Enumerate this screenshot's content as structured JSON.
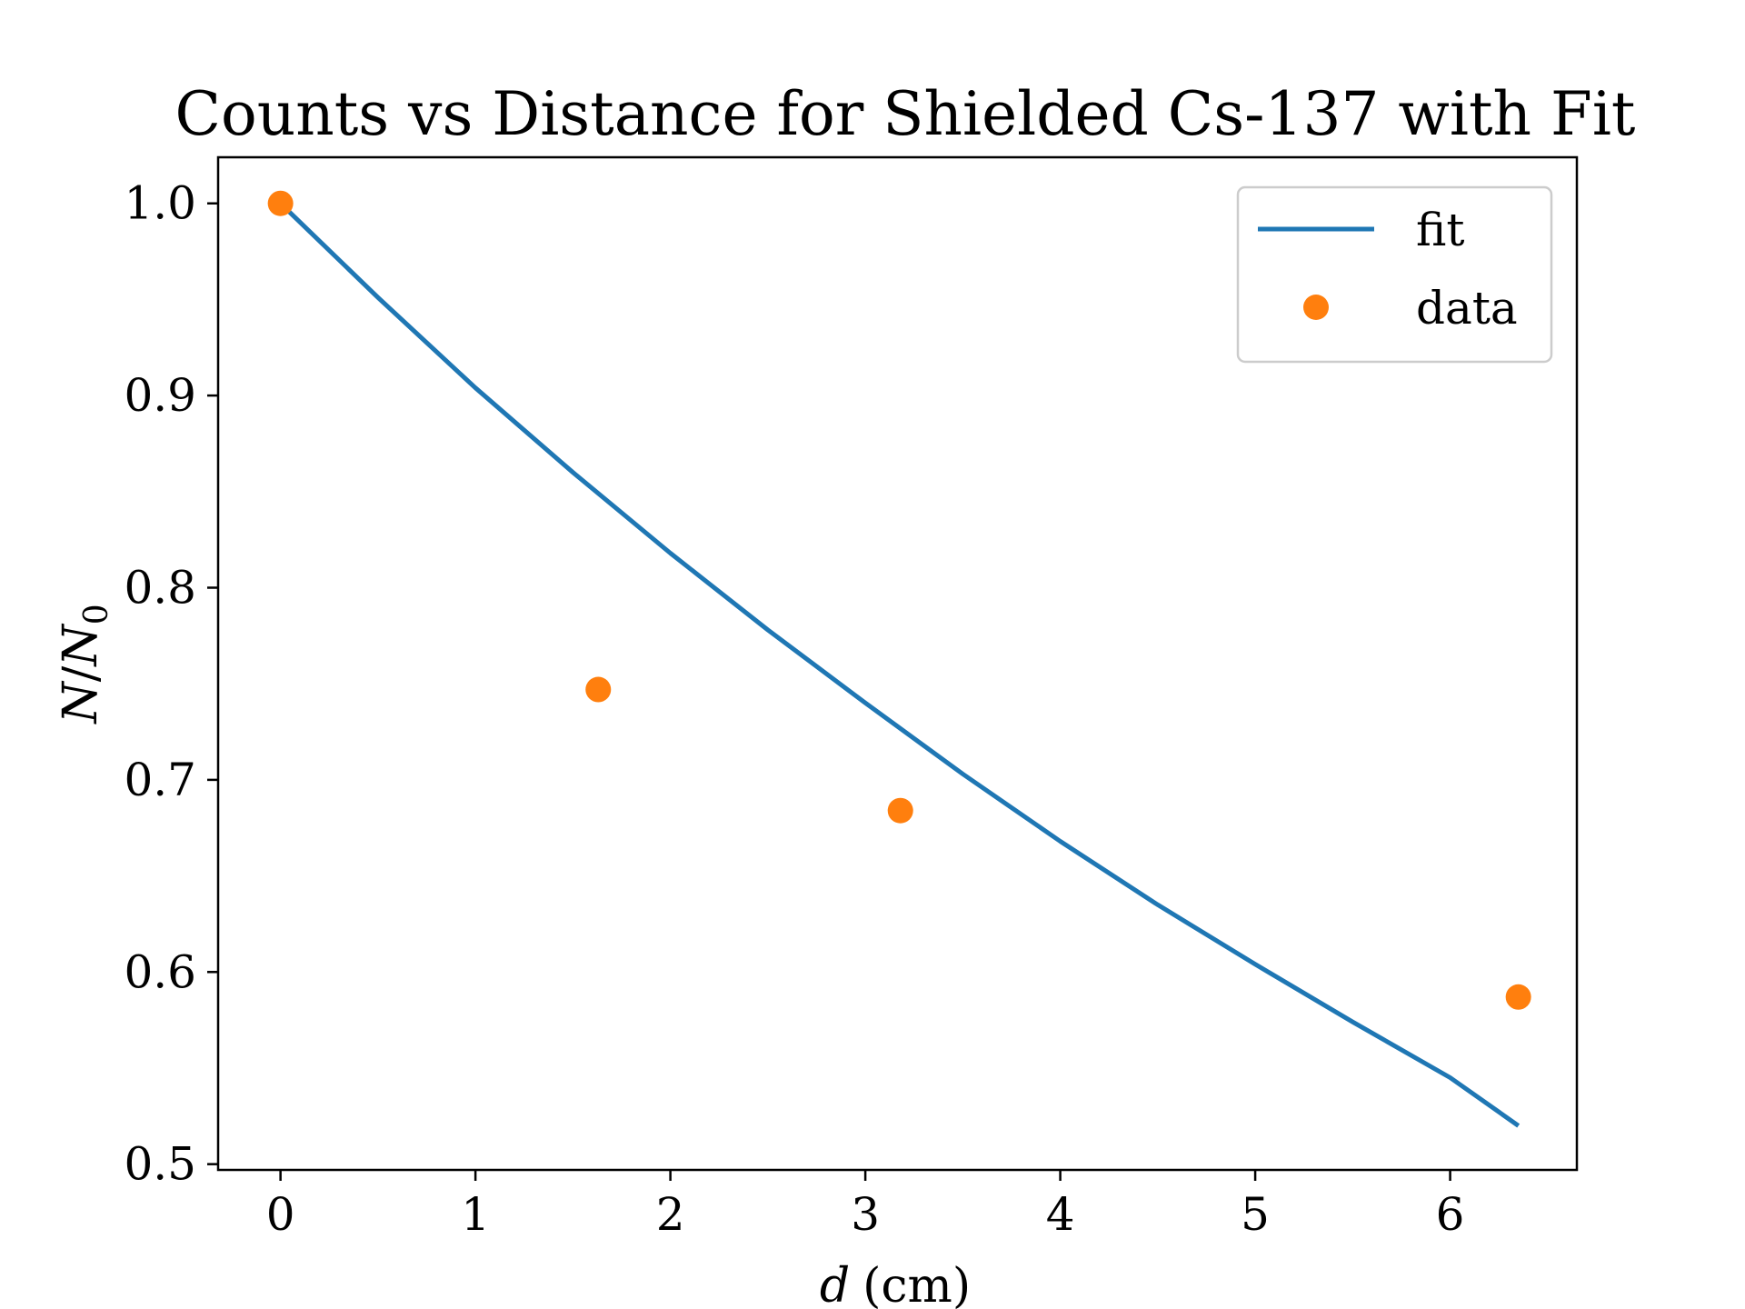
{
  "chart_data": {
    "type": "line",
    "title": "Counts vs Distance for Shielded Cs-137 with Fit",
    "xlabel": {
      "var": "d",
      "unit": "(cm)"
    },
    "ylabel": {
      "num": "N",
      "sep": "/",
      "den": "N",
      "sub": "0"
    },
    "xlim": [
      -0.32,
      6.65
    ],
    "ylim": [
      0.497,
      1.024
    ],
    "xticks": [
      0,
      1,
      2,
      3,
      4,
      5,
      6
    ],
    "xtick_labels": [
      "0",
      "1",
      "2",
      "3",
      "4",
      "5",
      "6"
    ],
    "yticks": [
      0.5,
      0.6,
      0.7,
      0.8,
      0.9,
      1.0
    ],
    "ytick_labels": [
      "0.5",
      "0.6",
      "0.7",
      "0.8",
      "0.9",
      "1.0"
    ],
    "grid": false,
    "legend_position": "top-right",
    "series": [
      {
        "name": "fit",
        "kind": "line",
        "color": "#1f77b4",
        "x": [
          0.0,
          0.5,
          1.0,
          1.5,
          2.0,
          2.5,
          3.0,
          3.5,
          4.0,
          4.5,
          5.0,
          5.5,
          6.0,
          6.35
        ],
        "y": [
          1.0,
          0.951,
          0.904,
          0.86,
          0.818,
          0.778,
          0.74,
          0.703,
          0.668,
          0.635,
          0.604,
          0.574,
          0.545,
          0.52
        ]
      },
      {
        "name": "data",
        "kind": "scatter",
        "color": "#ff7f0e",
        "x": [
          0.0,
          1.63,
          3.18,
          6.35
        ],
        "y": [
          1.0,
          0.747,
          0.684,
          0.587
        ]
      }
    ]
  }
}
